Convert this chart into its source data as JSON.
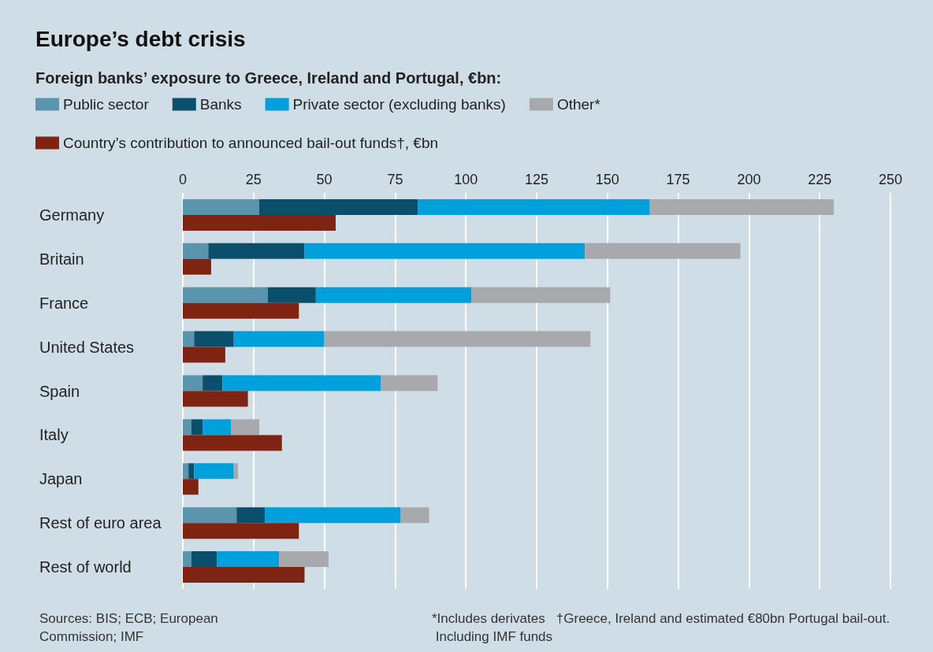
{
  "chart_data": {
    "type": "bar",
    "orientation": "horizontal",
    "title": "Europe’s debt crisis",
    "subtitle": "Foreign banks’ exposure to Greece, Ireland and Portugal, €bn:",
    "categories": [
      "Germany",
      "Britain",
      "France",
      "United States",
      "Spain",
      "Italy",
      "Japan",
      "Rest of euro area",
      "Rest of world"
    ],
    "series": [
      {
        "name": "Public sector",
        "color": "#5b95ad",
        "base": [
          0,
          0,
          0,
          0,
          0,
          0,
          0,
          0,
          0
        ],
        "values": [
          27,
          9,
          30,
          4,
          7,
          3,
          2,
          19,
          3
        ]
      },
      {
        "name": "Banks",
        "color": "#0a4f6b",
        "base": [
          27,
          9,
          30,
          4,
          7,
          3,
          2,
          19,
          3
        ],
        "values": [
          56,
          34,
          17,
          14,
          7,
          4,
          2,
          10,
          9
        ]
      },
      {
        "name": "Private sector (excluding banks)",
        "color": "#00a0dc",
        "base": [
          83,
          43,
          47,
          18,
          14,
          7,
          4,
          29,
          12
        ],
        "values": [
          82,
          99,
          55,
          32,
          56,
          10,
          14,
          48,
          22
        ]
      },
      {
        "name": "Other*",
        "color": "#a7a9ac",
        "base": [
          165,
          142,
          102,
          50,
          70,
          17,
          18,
          77,
          34
        ],
        "values": [
          65,
          55,
          49,
          94,
          20,
          10,
          1.5,
          10,
          17.5
        ]
      },
      {
        "name": "Country’s contribution to announced bail-out funds†, €bn",
        "color": "#7f2412",
        "values": [
          54,
          10,
          41,
          15,
          23,
          35,
          5.5,
          41,
          43
        ]
      }
    ],
    "xlim": [
      0,
      250
    ],
    "xticks": [
      0,
      25,
      50,
      75,
      100,
      125,
      150,
      175,
      200,
      225,
      250
    ],
    "grid": "x",
    "legend": "top left",
    "annotations": [
      "Sources: BIS; ECB; European Commission; IMF",
      "*Includes derivates",
      "†Greece, Ireland and estimated €80bn Portugal bail-out. Including IMF funds"
    ]
  }
}
